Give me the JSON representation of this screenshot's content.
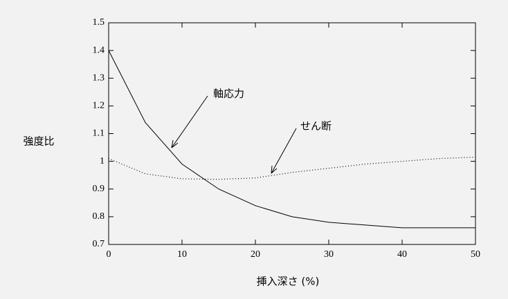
{
  "chart_data": {
    "type": "line",
    "x_label": "挿入深さ (%)",
    "y_label": "強度比",
    "x": [
      0,
      5,
      10,
      15,
      20,
      25,
      30,
      35,
      40,
      45,
      50
    ],
    "series": [
      {
        "name": "軸応力",
        "color": "#000000",
        "style": "solid",
        "values": [
          1.4,
          1.14,
          0.99,
          0.9,
          0.84,
          0.8,
          0.78,
          0.77,
          0.76,
          0.76,
          0.76
        ]
      },
      {
        "name": "せん断",
        "color": "#000000",
        "style": "dotted",
        "values": [
          1.01,
          0.955,
          0.937,
          0.935,
          0.94,
          0.96,
          0.975,
          0.99,
          1.0,
          1.01,
          1.015
        ]
      }
    ],
    "xlim": [
      0,
      50
    ],
    "xticks": [
      0,
      10,
      20,
      30,
      40,
      50
    ],
    "ylim": [
      0.7,
      1.5
    ],
    "yticks": [
      0.7,
      0.8,
      0.9,
      1,
      1.1,
      1.2,
      1.3,
      1.4,
      1.5
    ],
    "grid": false
  }
}
